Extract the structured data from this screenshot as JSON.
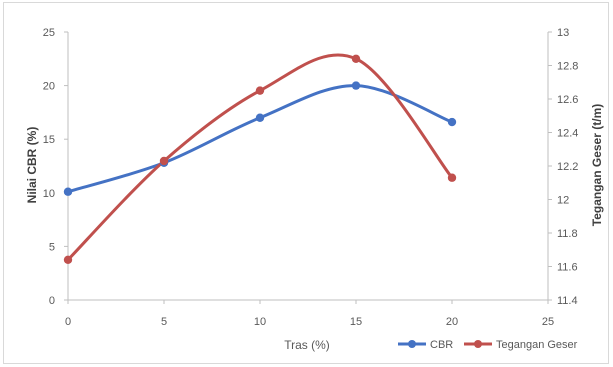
{
  "chart_data": {
    "type": "line",
    "x": [
      0,
      5,
      10,
      15,
      20
    ],
    "xlim": [
      0,
      25
    ],
    "xticks": [
      "0",
      "5",
      "10",
      "15",
      "20",
      "25"
    ],
    "xlabel": "Tras (%)",
    "ylabel": "Nilai CBR (%)",
    "ylim": [
      0,
      25
    ],
    "yticks": [
      "0",
      "5",
      "10",
      "15",
      "20",
      "25"
    ],
    "y2label": "Tegangan Geser (t/m)",
    "y2lim": [
      11.4,
      13
    ],
    "y2ticks": [
      "11.4",
      "11.6",
      "11.8",
      "12",
      "12.2",
      "12.4",
      "12.6",
      "12.8",
      "13"
    ],
    "grid": false,
    "legend_position": "bottom-right",
    "series": [
      {
        "name": "CBR",
        "axis": "left",
        "color": "#4472C4",
        "values": [
          10.1,
          12.8,
          17.0,
          20.0,
          16.6
        ]
      },
      {
        "name": "Tegangan Geser",
        "axis": "right",
        "color": "#C0504D",
        "values": [
          11.64,
          12.23,
          12.65,
          12.84,
          12.13
        ]
      }
    ]
  }
}
